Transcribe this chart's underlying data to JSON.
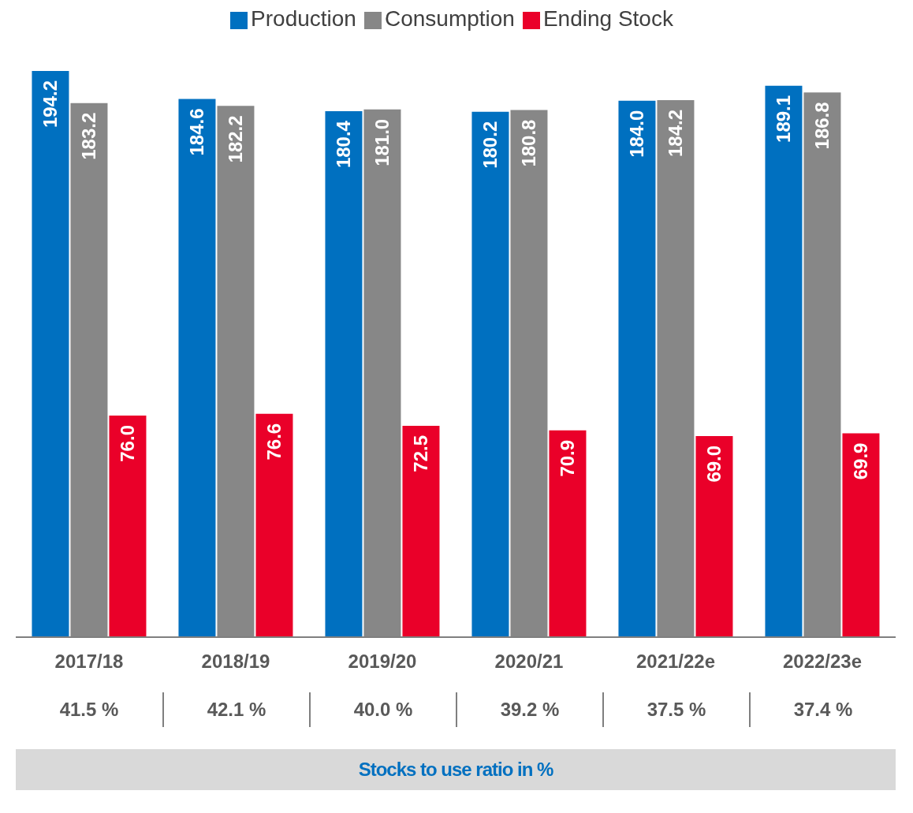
{
  "chart_data": {
    "type": "bar",
    "categories": [
      "2017/18",
      "2018/19",
      "2019/20",
      "2020/21",
      "2021/22e",
      "2022/23e"
    ],
    "series": [
      {
        "name": "Production",
        "color": "#0070c0",
        "values": [
          194.2,
          184.6,
          180.4,
          180.2,
          184.0,
          189.1
        ],
        "value_labels": [
          "194.2",
          "184.6",
          "180.4",
          "180.2",
          "184.0",
          "189.1"
        ]
      },
      {
        "name": "Consumption",
        "color": "#878787",
        "values": [
          183.2,
          182.2,
          181.0,
          180.8,
          184.2,
          186.8
        ],
        "value_labels": [
          "183.2",
          "182.2",
          "181.0",
          "180.8",
          "184.2",
          "186.8"
        ]
      },
      {
        "name": "Ending Stock",
        "color": "#ea0029",
        "values": [
          76.0,
          76.6,
          72.5,
          70.9,
          69.0,
          69.9
        ],
        "value_labels": [
          "76.0",
          "76.6",
          "72.5",
          "70.9",
          "69.0",
          "69.9"
        ]
      }
    ],
    "annotations": [
      "41.5 %",
      "42.1 %",
      "40.0 %",
      "39.2 %",
      "37.5 %",
      "37.4 %",
      "Stocks to use ratio in %"
    ],
    "legend": "top"
  }
}
